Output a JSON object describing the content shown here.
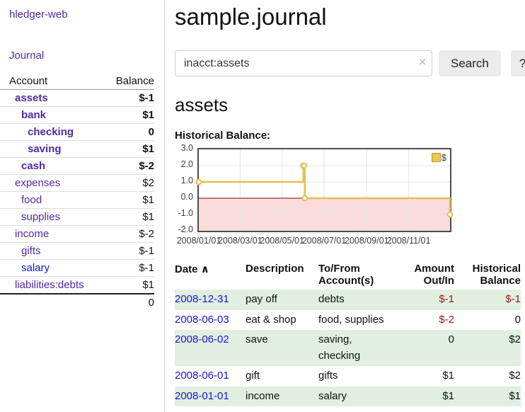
{
  "colors": {
    "link_purple": "#5229a3",
    "link_blue": "#1515d6",
    "neg_strong": "#801515",
    "neg_soft": "#b36b6b",
    "neg_table": "#8f1a1a",
    "stripe_green": "#e1efe1"
  },
  "sidebar": {
    "app_title": "hledger-web",
    "nav": {
      "journal": "Journal"
    },
    "accounts_table": {
      "headers": {
        "account": "Account",
        "balance": "Balance"
      },
      "rows": [
        {
          "name": "assets",
          "indent": 1,
          "bold": true,
          "balance": "$-1",
          "balance_style": "neg-strong"
        },
        {
          "name": "bank",
          "indent": 2,
          "bold": true,
          "balance": "$1",
          "balance_style": "pos"
        },
        {
          "name": "checking",
          "indent": 3,
          "bold": true,
          "balance": "0",
          "balance_style": "pos"
        },
        {
          "name": "saving",
          "indent": 3,
          "bold": true,
          "balance": "$1",
          "balance_style": "pos"
        },
        {
          "name": "cash",
          "indent": 2,
          "bold": true,
          "balance": "$-2",
          "balance_style": "neg-strong"
        },
        {
          "name": "expenses",
          "indent": 1,
          "bold": false,
          "balance": "$2",
          "balance_style": "pos"
        },
        {
          "name": "food",
          "indent": 2,
          "bold": false,
          "balance": "$1",
          "balance_style": "pos"
        },
        {
          "name": "supplies",
          "indent": 2,
          "bold": false,
          "balance": "$1",
          "balance_style": "pos"
        },
        {
          "name": "income",
          "indent": 1,
          "bold": false,
          "balance": "$-2",
          "balance_style": "neg-soft"
        },
        {
          "name": "gifts",
          "indent": 2,
          "bold": false,
          "balance": "$-1",
          "balance_style": "neg-soft"
        },
        {
          "name": "salary",
          "indent": 2,
          "bold": false,
          "balance": "$-1",
          "balance_style": "neg-soft",
          "link_style": "blue"
        },
        {
          "name": "liabilities:debts",
          "indent": 1,
          "bold": false,
          "balance": "$1",
          "balance_style": "pos",
          "row_border": "strong"
        }
      ],
      "total": "0"
    }
  },
  "header": {
    "title": "sample.journal"
  },
  "search": {
    "value": "inacct:assets",
    "clear_icon": "×",
    "button": "Search",
    "help_button": "?"
  },
  "account_page": {
    "heading": "assets",
    "chart_label": "Historical Balance:"
  },
  "chart_data": {
    "type": "line",
    "title": "Historical Balance",
    "style": "step-after",
    "series": [
      {
        "name": "$",
        "color": "#e4bf4e",
        "points": [
          {
            "date": "2008/01/01",
            "day": 0,
            "value": 1
          },
          {
            "date": "2008/06/01",
            "day": 152,
            "value": 2
          },
          {
            "date": "2008/06/02",
            "day": 153,
            "value": 2
          },
          {
            "date": "2008/06/03",
            "day": 154,
            "value": 0
          },
          {
            "date": "2008/12/31",
            "day": 365,
            "value": -1
          }
        ]
      }
    ],
    "ylim": [
      -2,
      3
    ],
    "yticks": [
      {
        "value": 3,
        "label": "3.0"
      },
      {
        "value": 2,
        "label": "2.0"
      },
      {
        "value": 1,
        "label": "1.0"
      },
      {
        "value": 0,
        "label": "0.0"
      },
      {
        "value": -1,
        "label": "-1.0"
      },
      {
        "value": -2,
        "label": "-2.0"
      }
    ],
    "xlim_days": [
      0,
      365
    ],
    "xticks": [
      {
        "day": 0,
        "label": "2008/01/01"
      },
      {
        "day": 60,
        "label": "2008/03/01"
      },
      {
        "day": 121,
        "label": "2008/05/01"
      },
      {
        "day": 182,
        "label": "2008/07/01"
      },
      {
        "day": 244,
        "label": "2008/09/01"
      },
      {
        "day": 305,
        "label": "2008/11/01"
      }
    ],
    "grid": true,
    "grid_color": "#e4e4e4",
    "negative_fill": "#fadcdc",
    "zero_line_color": "#8b0000",
    "legend_position": "top-right",
    "legend": {
      "label": "$",
      "swatch_fill": "#e9c64d",
      "swatch_border": "#b8952e"
    }
  },
  "register_table": {
    "headers": {
      "date": "Date",
      "sort_icon": "∧",
      "description": "Description",
      "accounts": "To/From\nAccount(s)",
      "amount": "Amount\nOut/In",
      "balance": "Historical\nBalance"
    },
    "rows": [
      {
        "date": "2008-12-31",
        "description": "pay off",
        "accounts": "debts",
        "amount": "$-1",
        "amount_negative": true,
        "balance": "$-1",
        "balance_negative": true,
        "shaded": true
      },
      {
        "date": "2008-06-03",
        "description": "eat & shop",
        "accounts": "food, supplies",
        "amount": "$-2",
        "amount_negative": true,
        "balance": "0",
        "balance_negative": false,
        "shaded": false
      },
      {
        "date": "2008-06-02",
        "description": "save",
        "accounts": "saving,\nchecking",
        "amount": "0",
        "amount_negative": false,
        "balance": "$2",
        "balance_negative": false,
        "shaded": true
      },
      {
        "date": "2008-06-01",
        "description": "gift",
        "accounts": "gifts",
        "amount": "$1",
        "amount_negative": false,
        "balance": "$2",
        "balance_negative": false,
        "shaded": false
      },
      {
        "date": "2008-01-01",
        "description": "income",
        "accounts": "salary",
        "amount": "$1",
        "amount_negative": false,
        "balance": "$1",
        "balance_negative": false,
        "shaded": true
      }
    ]
  }
}
